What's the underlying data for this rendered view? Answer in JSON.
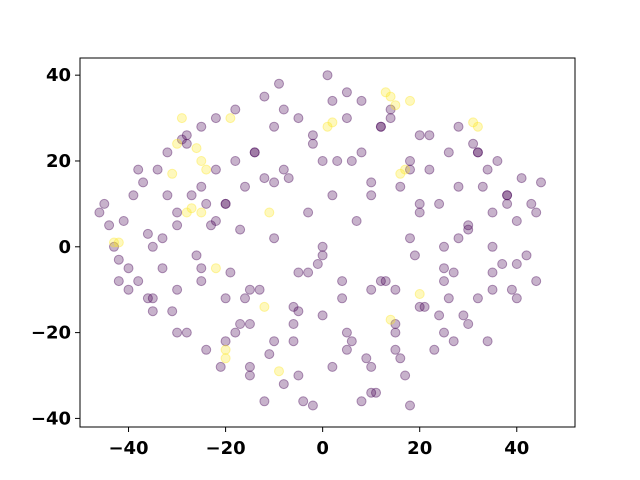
{
  "chart_data": {
    "type": "scatter",
    "title": "",
    "xlabel": "",
    "ylabel": "",
    "xlim": [
      -50,
      52
    ],
    "ylim": [
      -42,
      44
    ],
    "xticks": [
      -40,
      -20,
      0,
      20,
      40
    ],
    "yticks": [
      -40,
      -20,
      0,
      20,
      40
    ],
    "xtick_labels": [
      "−40",
      "−20",
      "0",
      "20",
      "40"
    ],
    "ytick_labels": [
      "−40",
      "−20",
      "0",
      "20",
      "40"
    ],
    "grid": false,
    "legend": "none",
    "colors": {
      "class_0": "#440154",
      "class_1": "#fde725"
    },
    "marker_alpha": 0.3,
    "series": [
      {
        "values_note": "dense cloud, class 0",
        "x": [
          -46,
          -45,
          -44,
          -43,
          -42,
          -41,
          -40,
          -39,
          -38,
          -37,
          -36,
          -35,
          -34,
          -33,
          -32,
          -31,
          -30,
          -29,
          -28,
          -27,
          -26,
          -25,
          -24,
          -23,
          -22,
          -21,
          -20,
          -19,
          -18,
          -17,
          -16,
          -15,
          -14,
          -13,
          -12,
          -11,
          -10,
          -9,
          -8,
          -7,
          -6,
          -5,
          -4,
          -3,
          -2,
          -1,
          0,
          1,
          2,
          3,
          4,
          5,
          6,
          7,
          8,
          9,
          10,
          11,
          12,
          13,
          14,
          15,
          16,
          17,
          18,
          19,
          20,
          21,
          22,
          23,
          24,
          25,
          26,
          27,
          28,
          29,
          30,
          31,
          32,
          33,
          34,
          35,
          36,
          37,
          38,
          39,
          40,
          41,
          42,
          43,
          44,
          45,
          -40,
          -38,
          -35,
          -32,
          -30,
          -28,
          -25,
          -22,
          -20,
          -18,
          -15,
          -12,
          -10,
          -8,
          -5,
          -2,
          0,
          2,
          5,
          8,
          10,
          12,
          15,
          18,
          20,
          22,
          25,
          28,
          30,
          32,
          35,
          38,
          40,
          -35,
          -30,
          -25,
          -20,
          -15,
          -10,
          -5,
          0,
          5,
          10,
          15,
          20,
          25,
          30,
          35,
          -30,
          -22,
          -14,
          -6,
          2,
          10,
          18,
          26,
          34,
          -20,
          -10,
          0,
          10,
          20,
          -25,
          -15,
          -5,
          5,
          15,
          25,
          35,
          -36,
          -28,
          -18,
          -8,
          4,
          14,
          24,
          32,
          40,
          -42,
          -33,
          -24,
          -16,
          -6,
          6,
          16,
          27,
          38,
          44,
          -12,
          -2,
          8,
          18,
          -17,
          -3,
          12,
          28
        ],
        "y": [
          8,
          10,
          5,
          0,
          -3,
          6,
          -10,
          12,
          -8,
          15,
          3,
          -12,
          18,
          -5,
          22,
          -15,
          8,
          25,
          -20,
          12,
          -2,
          28,
          -24,
          5,
          18,
          -28,
          10,
          -6,
          32,
          -18,
          14,
          -30,
          22,
          -10,
          35,
          -25,
          2,
          38,
          -32,
          16,
          -14,
          30,
          -36,
          8,
          24,
          -4,
          0,
          40,
          -28,
          20,
          -12,
          36,
          -22,
          6,
          34,
          -26,
          12,
          -34,
          28,
          -8,
          32,
          -18,
          14,
          -30,
          20,
          -2,
          26,
          -14,
          18,
          -24,
          10,
          -20,
          22,
          -6,
          28,
          -16,
          4,
          24,
          -12,
          14,
          -22,
          8,
          20,
          -4,
          12,
          -10,
          6,
          16,
          -2,
          10,
          -8,
          15,
          -5,
          18,
          -15,
          12,
          -20,
          24,
          -8,
          30,
          -12,
          20,
          -28,
          16,
          -22,
          32,
          -6,
          26,
          -16,
          34,
          -24,
          22,
          -10,
          28,
          -20,
          18,
          -14,
          26,
          -8,
          14,
          -18,
          22,
          -6,
          10,
          -12,
          0,
          5,
          -5,
          10,
          -10,
          15,
          -15,
          20,
          -20,
          15,
          -10,
          10,
          -5,
          5,
          0,
          -10,
          6,
          22,
          -18,
          12,
          -28,
          2,
          -12,
          18,
          -22,
          28,
          -2,
          -34,
          8,
          14,
          -18,
          -30,
          30,
          -24,
          0,
          -10,
          -12,
          26,
          -20,
          18,
          -8,
          30,
          -16,
          22,
          -4,
          -8,
          2,
          10,
          -12,
          -22,
          20,
          -26,
          -22,
          12,
          8,
          -36,
          -37,
          -36,
          -37,
          4,
          -6,
          -8,
          2
        ]
      },
      {
        "values_note": "sparse cluster, class 1",
        "x": [
          -43,
          -42,
          -31,
          -30,
          -29,
          -28,
          -27,
          -26,
          -25,
          -24,
          -22,
          -20,
          -19,
          -12,
          -11,
          -9,
          1,
          2,
          13,
          14,
          15,
          16,
          17,
          18,
          31,
          32,
          14,
          -20,
          -25,
          20
        ],
        "y": [
          1,
          1,
          17,
          24,
          30,
          8,
          9,
          23,
          20,
          18,
          -5,
          -26,
          30,
          -14,
          8,
          -29,
          28,
          29,
          36,
          35,
          33,
          17,
          18,
          34,
          29,
          28,
          -17,
          -24,
          8,
          -11
        ]
      }
    ]
  }
}
